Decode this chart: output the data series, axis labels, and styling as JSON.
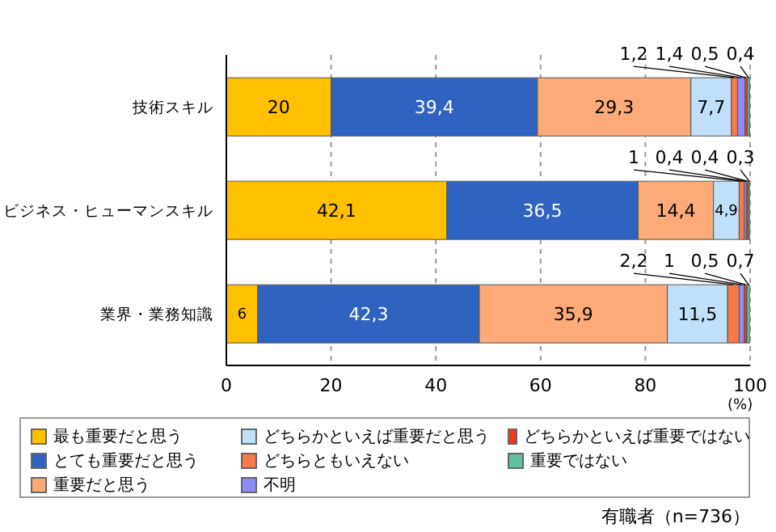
{
  "chart_data": {
    "type": "bar",
    "orientation": "horizontal",
    "stacked": true,
    "categories": [
      "技術スキル",
      "ビジネス・ヒューマンスキル",
      "業界・業務知識"
    ],
    "series": [
      {
        "name": "最も重要だと思う",
        "color": "#ffc000",
        "values": [
          20,
          42.1,
          6
        ],
        "value_labels": [
          "20",
          "42,1",
          "6"
        ]
      },
      {
        "name": "とても重要だと思う",
        "color": "#2e64c0",
        "values": [
          39.4,
          36.5,
          42.3
        ],
        "value_labels": [
          "39,4",
          "36,5",
          "42,3"
        ]
      },
      {
        "name": "重要だと思う",
        "color": "#fbaa78",
        "values": [
          29.3,
          14.4,
          35.9
        ],
        "value_labels": [
          "29,3",
          "14,4",
          "35,9"
        ]
      },
      {
        "name": "どちらかといえば重要だと思う",
        "color": "#bfe0f8",
        "values": [
          7.7,
          4.9,
          11.5
        ],
        "value_labels": [
          "7,7",
          "4,9",
          "11,5"
        ]
      },
      {
        "name": "どちらともいえない",
        "color": "#f87a48",
        "values": [
          1.2,
          1,
          2.2
        ],
        "value_labels": [
          "1,2",
          "1",
          "2,2"
        ]
      },
      {
        "name": "不明",
        "color": "#8c8cf8",
        "values": [
          1.4,
          0.4,
          1
        ],
        "value_labels": [
          "1,4",
          "0,4",
          "1"
        ]
      },
      {
        "name": "どちらかといえば重要ではない",
        "color": "#f03820",
        "values": [
          0.5,
          0.4,
          0.5
        ],
        "value_labels": [
          "0,5",
          "0,4",
          "0,5"
        ]
      },
      {
        "name": "重要ではない",
        "color": "#60c0a0",
        "values": [
          0.4,
          0.3,
          0.7
        ],
        "value_labels": [
          "0,4",
          "0,3",
          "0,7"
        ]
      }
    ],
    "xlim": [
      0,
      100
    ],
    "xticks": [
      0,
      20,
      40,
      60,
      80,
      100
    ],
    "xlabel": "(%)",
    "grid": "x",
    "legend": "bottom",
    "annotations": [
      "有職者（n=736）"
    ]
  }
}
